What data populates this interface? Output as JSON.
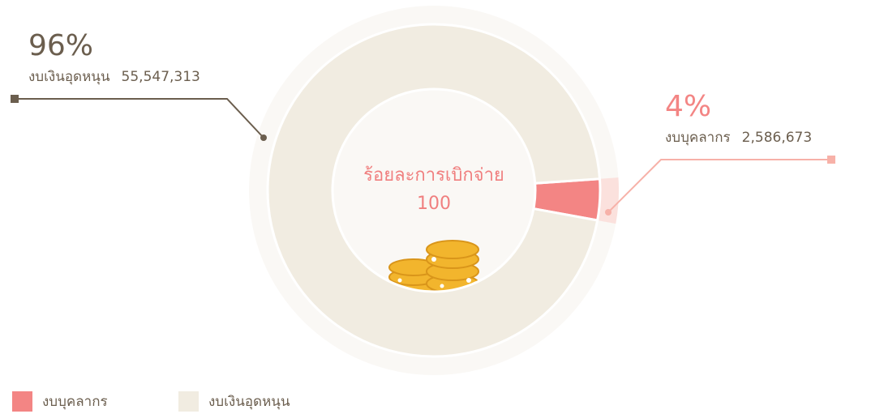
{
  "chart_data": {
    "type": "donut",
    "categories": [
      "งบบุคลากร",
      "งบเงินอุดหนุน"
    ],
    "values": [
      4,
      96
    ],
    "value_labels": [
      "4%",
      "96%"
    ],
    "amounts": [
      2586673,
      55547313
    ],
    "amount_labels": [
      "2,586,673",
      "55,547,313"
    ],
    "colors": [
      "#f38584",
      "#f1ece1"
    ],
    "center_label": "ร้อยละการเบิกจ่าย",
    "center_value": 100,
    "legend": "bottom-left"
  }
}
